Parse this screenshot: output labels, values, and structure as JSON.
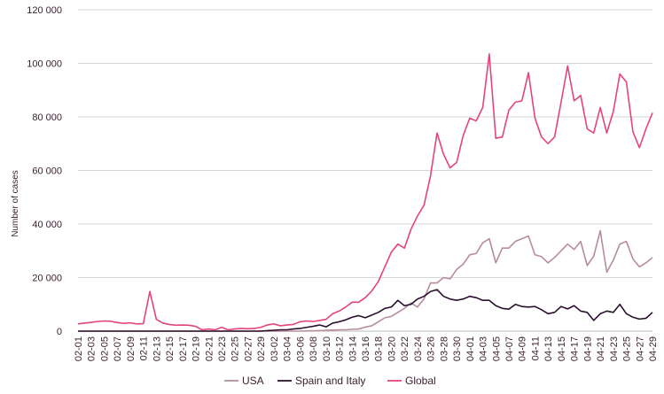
{
  "chart_data": {
    "type": "line",
    "ylabel": "Number of cases",
    "xlabel": "",
    "ylim": [
      0,
      120000
    ],
    "yticks": [
      0,
      20000,
      40000,
      60000,
      80000,
      100000,
      120000
    ],
    "ytick_labels": [
      "0",
      "20 000",
      "40 000",
      "60 000",
      "80 000",
      "100 000",
      "120 000"
    ],
    "grid": "horizontal",
    "legend_position": "bottom",
    "x": [
      "02-01",
      "02-02",
      "02-03",
      "02-04",
      "02-05",
      "02-06",
      "02-07",
      "02-08",
      "02-09",
      "02-10",
      "02-11",
      "02-12",
      "02-13",
      "02-14",
      "02-15",
      "02-16",
      "02-17",
      "02-18",
      "02-19",
      "02-20",
      "02-21",
      "02-22",
      "02-23",
      "02-24",
      "02-25",
      "02-26",
      "02-27",
      "02-28",
      "02-29",
      "03-01",
      "03-02",
      "03-03",
      "03-04",
      "03-05",
      "03-06",
      "03-07",
      "03-08",
      "03-09",
      "03-10",
      "03-11",
      "03-12",
      "03-13",
      "03-14",
      "03-15",
      "03-16",
      "03-17",
      "03-18",
      "03-19",
      "03-20",
      "03-21",
      "03-22",
      "03-23",
      "03-24",
      "03-25",
      "03-26",
      "03-27",
      "03-28",
      "03-29",
      "03-30",
      "03-31",
      "04-01",
      "04-02",
      "04-03",
      "04-04",
      "04-05",
      "04-06",
      "04-07",
      "04-08",
      "04-09",
      "04-10",
      "04-11",
      "04-12",
      "04-13",
      "04-14",
      "04-15",
      "04-16",
      "04-17",
      "04-18",
      "04-19",
      "04-20",
      "04-21",
      "04-22",
      "04-23",
      "04-24",
      "04-25",
      "04-26",
      "04-27",
      "04-28",
      "04-29"
    ],
    "xtick_labels": [
      "02-01",
      "02-03",
      "02-05",
      "02-07",
      "02-09",
      "02-11",
      "02-13",
      "02-15",
      "02-17",
      "02-19",
      "02-21",
      "02-23",
      "02-25",
      "02-27",
      "02-29",
      "03-02",
      "03-04",
      "03-06",
      "03-08",
      "03-10",
      "03-12",
      "03-14",
      "03-16",
      "03-18",
      "03-20",
      "03-22",
      "03-24",
      "03-26",
      "03-28",
      "03-30",
      "04-01",
      "04-03",
      "04-05",
      "04-07",
      "04-09",
      "04-11",
      "04-13",
      "04-15",
      "04-17",
      "04-19",
      "04-21",
      "04-23",
      "04-25",
      "04-27",
      "04-29"
    ],
    "series": [
      {
        "name": "USA",
        "color": "#b78c9e",
        "values": [
          0,
          0,
          0,
          0,
          0,
          0,
          0,
          0,
          0,
          0,
          0,
          0,
          0,
          0,
          0,
          0,
          0,
          0,
          0,
          0,
          0,
          0,
          0,
          0,
          0,
          0,
          0,
          0,
          0,
          0,
          0,
          0,
          0,
          0,
          0,
          100,
          100,
          200,
          300,
          400,
          500,
          500,
          700,
          800,
          1500,
          2000,
          3500,
          5000,
          5500,
          7000,
          8500,
          10500,
          9000,
          12000,
          18000,
          18000,
          20000,
          19500,
          23000,
          25000,
          28500,
          29000,
          33000,
          34500,
          25500,
          31000,
          31000,
          33500,
          34500,
          35500,
          28500,
          27800,
          25500,
          27500,
          30000,
          32500,
          30500,
          33500,
          24500,
          28000,
          37500,
          22000,
          26500,
          32500,
          33500,
          27000,
          24000,
          25500,
          27500
        ]
      },
      {
        "name": "Spain and Italy",
        "color": "#2b0f2f",
        "values": [
          0,
          0,
          0,
          0,
          0,
          0,
          0,
          0,
          0,
          0,
          0,
          0,
          0,
          0,
          0,
          0,
          0,
          0,
          0,
          0,
          0,
          0,
          0,
          0,
          0,
          0,
          0,
          0,
          0,
          200,
          300,
          500,
          500,
          800,
          1000,
          1400,
          1800,
          2300,
          1600,
          3000,
          3500,
          4200,
          5200,
          5800,
          5000,
          6000,
          7000,
          8500,
          9000,
          11500,
          9500,
          10000,
          12000,
          13000,
          14800,
          15500,
          13000,
          12000,
          11500,
          12000,
          13000,
          12500,
          11500,
          11500,
          9500,
          8500,
          8200,
          10000,
          9200,
          9000,
          9200,
          8000,
          6500,
          7000,
          9200,
          8300,
          9500,
          7500,
          7000,
          4000,
          6500,
          7500,
          7000,
          10000,
          6500,
          5200,
          4500,
          4800,
          7000
        ]
      },
      {
        "name": "Global",
        "color": "#e5447a",
        "values": [
          2700,
          3000,
          3300,
          3600,
          3800,
          3700,
          3200,
          2900,
          3100,
          2700,
          2800,
          14800,
          4400,
          3000,
          2500,
          2200,
          2300,
          2200,
          1800,
          500,
          800,
          500,
          1400,
          500,
          800,
          1000,
          900,
          1000,
          1400,
          2300,
          2700,
          2000,
          2300,
          2500,
          3500,
          3800,
          3600,
          4000,
          4400,
          6500,
          7500,
          9000,
          10800,
          10800,
          12500,
          15000,
          18500,
          24000,
          29500,
          32500,
          31000,
          38000,
          43000,
          47000,
          58000,
          74000,
          66000,
          61000,
          63000,
          73000,
          79500,
          78500,
          83500,
          103500,
          72000,
          72500,
          82500,
          85500,
          86000,
          96500,
          79500,
          72500,
          70000,
          72500,
          85500,
          99000,
          86000,
          88000,
          75500,
          74000,
          83500,
          74000,
          82000,
          96000,
          93000,
          74500,
          68500,
          75500,
          81500
        ]
      }
    ],
    "legend": [
      "USA",
      "Spain and Italy",
      "Global"
    ]
  }
}
